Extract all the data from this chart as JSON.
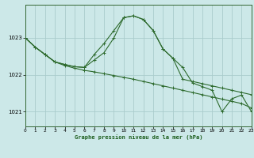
{
  "title": "Graphe pression niveau de la mer (hPa)",
  "bg_color": "#cce8e8",
  "grid_color": "#aacccc",
  "line_color": "#2d6a2d",
  "xlim": [
    0,
    23
  ],
  "ylim": [
    1020.6,
    1023.9
  ],
  "yticks": [
    1021,
    1022,
    1023
  ],
  "xticks": [
    0,
    1,
    2,
    3,
    4,
    5,
    6,
    7,
    8,
    9,
    10,
    11,
    12,
    13,
    14,
    15,
    16,
    17,
    18,
    19,
    20,
    21,
    22,
    23
  ],
  "series1_x": [
    0,
    1,
    2,
    3,
    4,
    5,
    6,
    7,
    8,
    9,
    10,
    11,
    12,
    13,
    14,
    15,
    16,
    17,
    18,
    19,
    20,
    21,
    22,
    23
  ],
  "series1_y": [
    1023.0,
    1022.75,
    1022.55,
    1022.35,
    1022.25,
    1022.18,
    1022.12,
    1022.08,
    1022.03,
    1021.98,
    1021.93,
    1021.88,
    1021.82,
    1021.76,
    1021.7,
    1021.64,
    1021.58,
    1021.52,
    1021.46,
    1021.4,
    1021.34,
    1021.28,
    1021.22,
    1021.1
  ],
  "series2_x": [
    0,
    1,
    2,
    3,
    4,
    5,
    6,
    7,
    8,
    9,
    10,
    11,
    12,
    13,
    14,
    15,
    16,
    17,
    18,
    19,
    20,
    21,
    22,
    23
  ],
  "series2_y": [
    1023.0,
    1022.75,
    1022.55,
    1022.35,
    1022.28,
    1022.22,
    1022.2,
    1022.55,
    1022.85,
    1023.2,
    1023.55,
    1023.6,
    1023.5,
    1023.2,
    1022.7,
    1022.45,
    1021.88,
    1021.82,
    1021.76,
    1021.7,
    1021.64,
    1021.58,
    1021.52,
    1021.46
  ],
  "series3_x": [
    0,
    1,
    2,
    3,
    4,
    5,
    6,
    7,
    8,
    9,
    10,
    11,
    12,
    13,
    14,
    15,
    16,
    17,
    18,
    19,
    20,
    21,
    22,
    23
  ],
  "series3_y": [
    1023.0,
    1022.75,
    1022.55,
    1022.35,
    1022.28,
    1022.22,
    1022.2,
    1022.4,
    1022.6,
    1023.0,
    1023.55,
    1023.6,
    1023.5,
    1023.2,
    1022.7,
    1022.45,
    1022.2,
    1021.78,
    1021.68,
    1021.58,
    1021.0,
    1021.35,
    1021.45,
    1021.0
  ]
}
